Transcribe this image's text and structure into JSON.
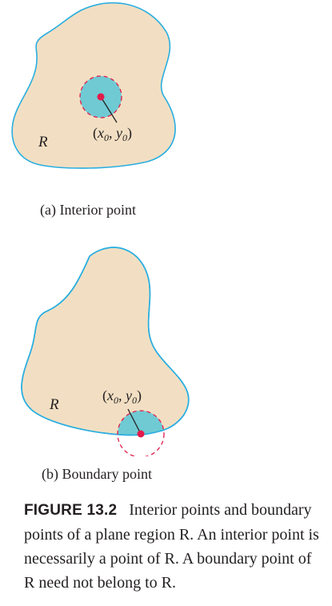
{
  "colors": {
    "region_fill": "#f2dfc3",
    "region_outline": "#29aee0",
    "disk_fill": "#6fcad3",
    "point": "#e31b4b",
    "dashed_circle": "#e31b4b",
    "text": "#231f20"
  },
  "panel_a": {
    "region_label": "R",
    "point_label": "(x0, y0)",
    "caption": "(a) Interior point"
  },
  "panel_b": {
    "region_label": "R",
    "point_label": "(x0, y0)",
    "caption": "(b) Boundary point"
  },
  "figure_caption": {
    "number": "FIGURE 13.2",
    "text": "Interior points and boundary points of a plane region R. An interior point is necessarily a point of R. A boundary point of R need not belong to R."
  }
}
